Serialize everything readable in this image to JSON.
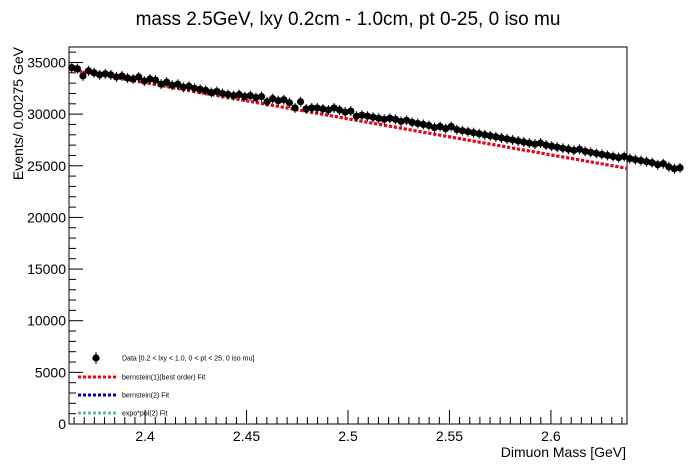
{
  "chart_data": {
    "type": "scatter",
    "title": "mass 2.5GeV, lxy 0.2cm - 1.0cm, pt 0-25, 0 iso mu",
    "xlabel": "Dimuon Mass [GeV]",
    "ylabel": "Events/ 0.00275 GeV",
    "xlim": [
      2.3625,
      2.6375
    ],
    "ylim": [
      0,
      36500
    ],
    "xticks": [
      2.4,
      2.45,
      2.5,
      2.55,
      2.6
    ],
    "xtick_labels": [
      "2.4",
      "2.45",
      "2.5",
      "2.55",
      "2.6"
    ],
    "yticks": [
      0,
      5000,
      10000,
      15000,
      20000,
      25000,
      30000,
      35000
    ],
    "ytick_labels": [
      "0",
      "5000",
      "10000",
      "15000",
      "20000",
      "25000",
      "30000",
      "35000"
    ],
    "grid": false,
    "legend_position": "bottom-left",
    "series": [
      {
        "name": "Data [0.2 < lxy < 1.0, 0 < pt < 25, 0 iso mu]",
        "kind": "points",
        "color": "#000000",
        "x_start": 2.363875,
        "x_step": 0.00275,
        "values": [
          34500,
          34400,
          33700,
          34200,
          34000,
          33800,
          33900,
          33800,
          33600,
          33700,
          33500,
          33400,
          33600,
          33200,
          33400,
          33300,
          32900,
          33100,
          32800,
          32900,
          32600,
          32700,
          32500,
          32400,
          32300,
          32100,
          32200,
          32000,
          31900,
          31800,
          31900,
          31700,
          31800,
          31600,
          31700,
          31200,
          31500,
          31300,
          31400,
          31100,
          30600,
          31200,
          30500,
          30600,
          30600,
          30500,
          30400,
          30600,
          30400,
          30200,
          30300,
          29800,
          29900,
          29800,
          29700,
          29600,
          29500,
          29600,
          29500,
          29300,
          29400,
          29200,
          29100,
          29000,
          28900,
          28700,
          28800,
          28600,
          28800,
          28500,
          28400,
          28300,
          28200,
          28100,
          28000,
          27900,
          27800,
          27700,
          27600,
          27500,
          27400,
          27300,
          27200,
          27100,
          27200,
          27000,
          26900,
          26800,
          26700,
          26600,
          26500,
          26600,
          26400,
          26300,
          26200,
          26100,
          26000,
          25900,
          25800,
          25900,
          25700,
          25600,
          25500,
          25400,
          25300,
          25100,
          25200,
          24900,
          24700,
          24800
        ]
      },
      {
        "name": "bernstein(1)(best order) Fit",
        "kind": "line",
        "color": "#ff0000",
        "x": [
          2.3625,
          2.6375
        ],
        "values": [
          34350,
          24750
        ]
      },
      {
        "name": "bernstein(2) Fit",
        "kind": "line",
        "color": "#0000cc",
        "x": [
          2.3625,
          2.6375
        ],
        "values": [
          34350,
          24750
        ]
      },
      {
        "name": "expo*pol(2) Fit",
        "kind": "line",
        "color": "#66bb99",
        "x": [
          2.3625,
          2.6375
        ],
        "values": [
          34350,
          24750
        ]
      }
    ]
  }
}
